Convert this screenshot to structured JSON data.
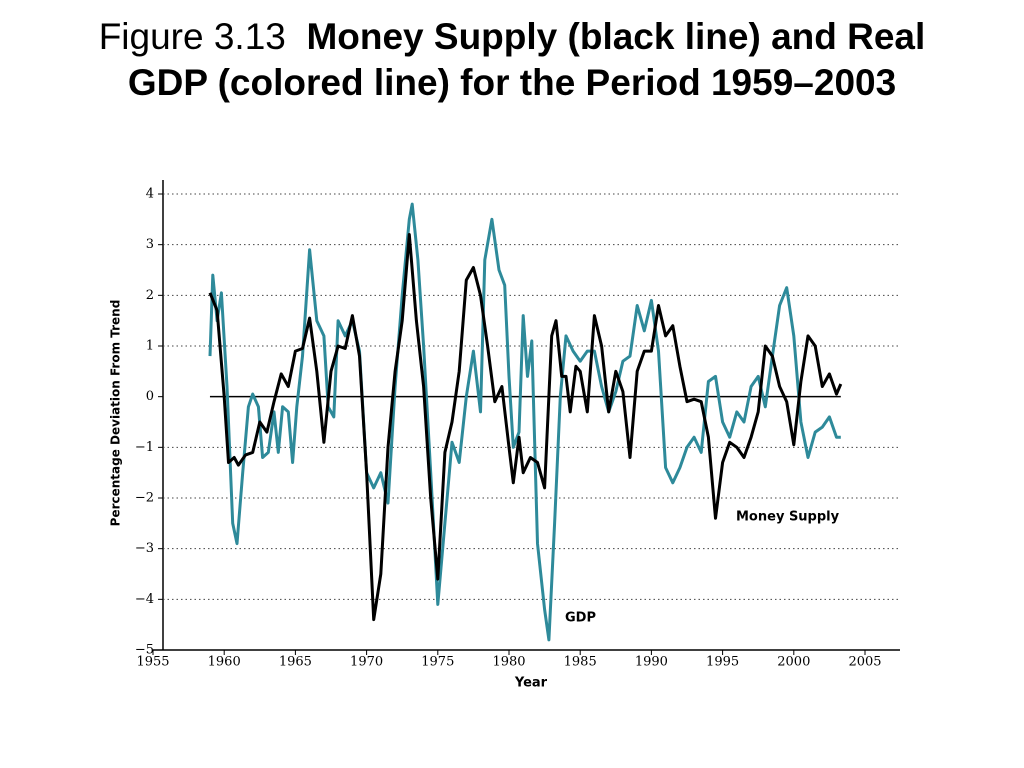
{
  "chart_data": {
    "type": "line",
    "figure_label": "Figure 3.13",
    "title": "Money Supply (black line) and Real GDP (colored line) for the Period 1959–2003",
    "xlabel": "Year",
    "ylabel": "Percentage Deviation From Trend",
    "xlim": [
      1955,
      2005
    ],
    "xticks": [
      1955,
      1960,
      1965,
      1970,
      1975,
      1980,
      1985,
      1990,
      1995,
      2000,
      2005
    ],
    "ylim": [
      -5,
      4
    ],
    "yticks": [
      {
        "value": -5,
        "label": "−5"
      },
      {
        "value": -4,
        "label": "−4"
      },
      {
        "value": -3,
        "label": "−3"
      },
      {
        "value": -2,
        "label": "−2"
      },
      {
        "value": -1,
        "label": "−1"
      },
      0,
      1,
      2,
      3,
      4
    ],
    "grid": true,
    "series": [
      {
        "name": "Money Supply",
        "color": "#000000",
        "x": [
          1959.0,
          1959.5,
          1960,
          1960.3,
          1960.7,
          1961,
          1961.5,
          1962,
          1962.5,
          1963,
          1963.5,
          1964,
          1964.5,
          1965,
          1965.5,
          1966,
          1966.5,
          1967,
          1967.5,
          1968,
          1968.5,
          1969,
          1969.5,
          1970,
          1970.5,
          1971,
          1971.5,
          1972,
          1972.5,
          1973,
          1973.5,
          1974,
          1974.5,
          1975,
          1975.5,
          1976,
          1976.5,
          1977,
          1977.5,
          1978,
          1978.5,
          1979,
          1979.5,
          1980,
          1980.3,
          1980.7,
          1981,
          1981.5,
          1982,
          1982.5,
          1983,
          1983.3,
          1983.7,
          1984,
          1984.3,
          1984.7,
          1985,
          1985.5,
          1986,
          1986.5,
          1987,
          1987.5,
          1988,
          1988.5,
          1989,
          1989.5,
          1990,
          1990.5,
          1991,
          1991.5,
          1992,
          1992.5,
          1993,
          1993.5,
          1994,
          1994.5,
          1995,
          1995.5,
          1996,
          1996.5,
          1997,
          1997.5,
          1998,
          1998.5,
          1999,
          1999.5,
          2000,
          2000.5,
          2001,
          2001.5,
          2002,
          2002.5,
          2003,
          2003.3
        ],
        "values": [
          2.05,
          1.7,
          0,
          -1.3,
          -1.2,
          -1.35,
          -1.15,
          -1.1,
          -0.5,
          -0.7,
          -0.1,
          0.45,
          0.2,
          0.9,
          0.95,
          1.55,
          0.5,
          -0.9,
          0.5,
          1.0,
          0.95,
          1.6,
          0.8,
          -1.5,
          -4.4,
          -3.5,
          -1.0,
          0.5,
          1.5,
          3.2,
          1.5,
          0.2,
          -2.0,
          -3.6,
          -1.1,
          -0.5,
          0.5,
          2.3,
          2.55,
          2.0,
          1.0,
          -0.1,
          0.2,
          -1.0,
          -1.7,
          -0.8,
          -1.5,
          -1.2,
          -1.3,
          -1.8,
          1.2,
          1.5,
          0.4,
          0.4,
          -0.3,
          0.6,
          0.5,
          -0.3,
          1.6,
          1.0,
          -0.3,
          0.5,
          0.1,
          -1.2,
          0.5,
          0.9,
          0.9,
          1.8,
          1.2,
          1.4,
          0.6,
          -0.1,
          -0.05,
          -0.1,
          -0.8,
          -2.4,
          -1.3,
          -0.9,
          -1.0,
          -1.2,
          -0.8,
          -0.3,
          1.0,
          0.8,
          0.2,
          -0.1,
          -0.95,
          0.3,
          1.2,
          1.0,
          0.2,
          0.45,
          0.05,
          0.25
        ]
      },
      {
        "name": "GDP",
        "color": "#2e8a9a",
        "x": [
          1959.0,
          1959.2,
          1959.5,
          1959.8,
          1960.2,
          1960.6,
          1960.9,
          1961.3,
          1961.7,
          1962,
          1962.4,
          1962.7,
          1963.1,
          1963.5,
          1963.8,
          1964.1,
          1964.5,
          1964.8,
          1965.1,
          1965.5,
          1966,
          1966.5,
          1967,
          1967.3,
          1967.7,
          1968,
          1968.5,
          1969,
          1969.5,
          1970,
          1970.5,
          1971,
          1971.5,
          1972,
          1972.5,
          1973,
          1973.2,
          1973.6,
          1974,
          1974.5,
          1975,
          1975.5,
          1976,
          1976.5,
          1977,
          1977.5,
          1978,
          1978.3,
          1978.8,
          1979.3,
          1979.7,
          1980,
          1980.3,
          1980.7,
          1981,
          1981.3,
          1981.6,
          1982,
          1982.5,
          1982.8,
          1983.2,
          1983.6,
          1984,
          1984.5,
          1985,
          1985.5,
          1986,
          1986.5,
          1987,
          1987.5,
          1988,
          1988.5,
          1989,
          1989.5,
          1990,
          1990.5,
          1991,
          1991.5,
          1992,
          1992.5,
          1993,
          1993.5,
          1994,
          1994.5,
          1995,
          1995.5,
          1996,
          1996.5,
          1997,
          1997.5,
          1998,
          1998.5,
          1999,
          1999.5,
          2000,
          2000.5,
          2001,
          2001.5,
          2002,
          2002.5,
          2003,
          2003.3
        ],
        "values": [
          0.8,
          2.4,
          1.5,
          2.05,
          0.2,
          -2.5,
          -2.9,
          -1.5,
          -0.2,
          0.05,
          -0.2,
          -1.2,
          -1.1,
          -0.3,
          -1.1,
          -0.2,
          -0.3,
          -1.3,
          -0.2,
          0.8,
          2.9,
          1.5,
          1.2,
          -0.2,
          -0.4,
          1.5,
          1.2,
          1.5,
          0.9,
          -1.5,
          -1.8,
          -1.5,
          -2.1,
          0.2,
          2.0,
          3.5,
          3.8,
          2.7,
          1.0,
          -1.5,
          -4.1,
          -2.5,
          -0.9,
          -1.3,
          0.0,
          0.9,
          -0.3,
          2.7,
          3.5,
          2.5,
          2.2,
          0.4,
          -1.0,
          -0.7,
          1.6,
          0.4,
          1.1,
          -2.9,
          -4.2,
          -4.8,
          -2.5,
          0.0,
          1.2,
          0.9,
          0.7,
          0.9,
          0.9,
          0.2,
          -0.3,
          0.1,
          0.7,
          0.8,
          1.8,
          1.3,
          1.9,
          0.9,
          -1.4,
          -1.7,
          -1.4,
          -1.0,
          -0.8,
          -1.1,
          0.3,
          0.4,
          -0.5,
          -0.8,
          -0.3,
          -0.5,
          0.2,
          0.4,
          -0.2,
          0.8,
          1.8,
          2.15,
          1.2,
          -0.5,
          -1.2,
          -0.7,
          -0.6,
          -0.4,
          -0.8,
          -0.8
        ]
      }
    ]
  }
}
